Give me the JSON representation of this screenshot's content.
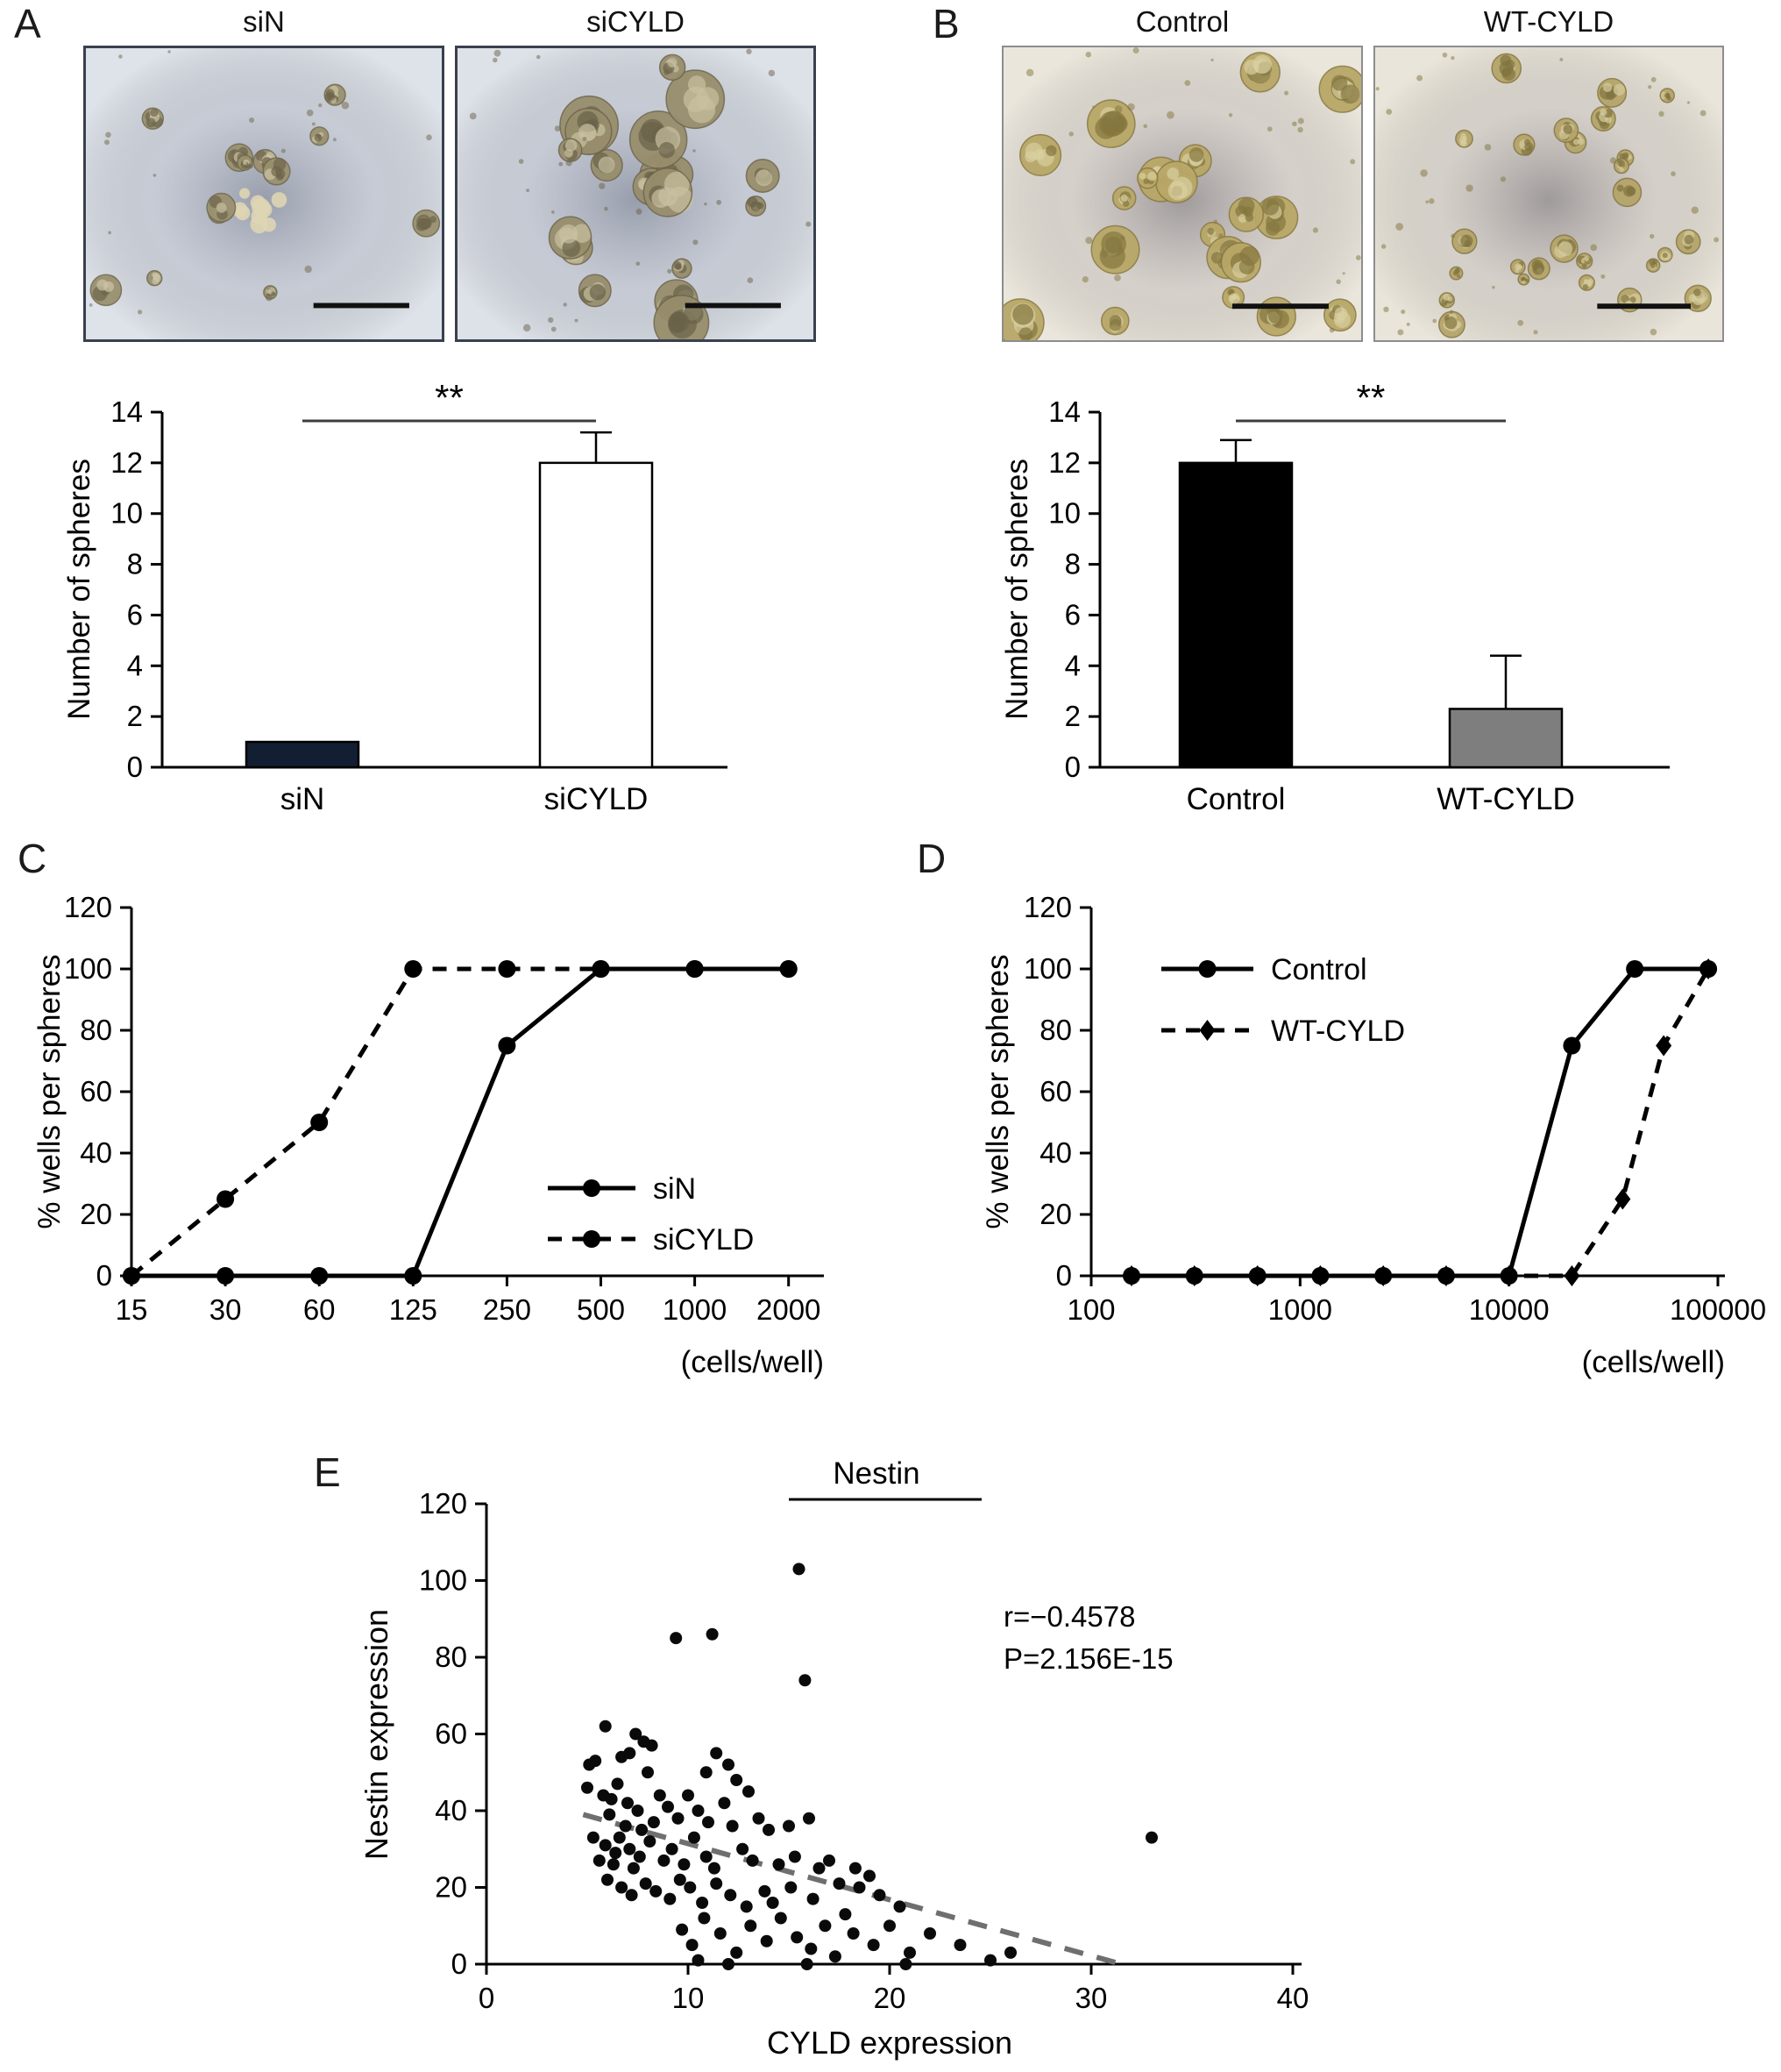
{
  "figure": {
    "panels": {
      "A": {
        "label": "A",
        "images": [
          {
            "caption": "siN"
          },
          {
            "caption": "siCYLD"
          }
        ]
      },
      "B": {
        "label": "B",
        "images": [
          {
            "caption": "Control"
          },
          {
            "caption": "WT-CYLD"
          }
        ]
      },
      "C": {
        "label": "C"
      },
      "D": {
        "label": "D"
      },
      "E": {
        "label": "E"
      }
    }
  },
  "chart_data": [
    {
      "id": "bar-siN-siCYLD",
      "type": "bar",
      "panel": "A",
      "categories": [
        "siN",
        "siCYLD"
      ],
      "values": [
        1,
        12
      ],
      "errors": [
        0,
        1.2
      ],
      "bar_colors": [
        "#121f33",
        "#ffffff"
      ],
      "ylabel": "Number of spheres",
      "ylim": [
        0,
        14
      ],
      "yticks": [
        0,
        2,
        4,
        6,
        8,
        10,
        12,
        14
      ],
      "significance": "**"
    },
    {
      "id": "bar-control-wtcyld",
      "type": "bar",
      "panel": "B",
      "categories": [
        "Control",
        "WT-CYLD"
      ],
      "values": [
        12,
        2.3
      ],
      "errors": [
        0.9,
        2.1
      ],
      "bar_colors": [
        "#000000",
        "#7e7e7e"
      ],
      "ylabel": "Number of spheres",
      "ylim": [
        0,
        14
      ],
      "yticks": [
        0,
        2,
        4,
        6,
        8,
        10,
        12,
        14
      ],
      "significance": "**"
    },
    {
      "id": "line-limiting-dilution-si",
      "type": "line",
      "panel": "C",
      "x_type": "category",
      "categories": [
        "15",
        "30",
        "60",
        "125",
        "250",
        "500",
        "1000",
        "2000"
      ],
      "series": [
        {
          "name": "siN",
          "style": "solid",
          "marker": "circle",
          "values": [
            0,
            0,
            0,
            0,
            75,
            100,
            100,
            100
          ]
        },
        {
          "name": "siCYLD",
          "style": "dashed",
          "marker": "circle",
          "values": [
            0,
            25,
            50,
            100,
            100,
            100,
            100,
            100
          ]
        }
      ],
      "ylabel": "% wells per spheres",
      "xlabel": "(cells/well)",
      "ylim": [
        0,
        120
      ],
      "yticks": [
        0,
        20,
        40,
        60,
        80,
        100,
        120
      ],
      "legend_position": "inside-right-bottom"
    },
    {
      "id": "line-limiting-dilution-wt",
      "type": "line",
      "panel": "D",
      "x_type": "log",
      "xlim": [
        100,
        100000
      ],
      "xticks": [
        100,
        1000,
        10000,
        100000
      ],
      "xtick_labels": [
        "100",
        "1000",
        "10000",
        "100000"
      ],
      "series": [
        {
          "name": "Control",
          "style": "solid",
          "marker": "circle",
          "x": [
            156,
            312,
            625,
            1250,
            2500,
            5000,
            10000,
            20000,
            40000,
            90000
          ],
          "values": [
            0,
            0,
            0,
            0,
            0,
            0,
            0,
            75,
            100,
            100
          ]
        },
        {
          "name": "WT-CYLD",
          "style": "dashed",
          "marker": "diamond",
          "x": [
            156,
            312,
            625,
            1250,
            2500,
            5000,
            10000,
            20000,
            35000,
            55000,
            90000
          ],
          "values": [
            0,
            0,
            0,
            0,
            0,
            0,
            0,
            0,
            25,
            75,
            100
          ]
        }
      ],
      "ylabel": "% wells per spheres",
      "xlabel": "(cells/well)",
      "ylim": [
        0,
        120
      ],
      "yticks": [
        0,
        20,
        40,
        60,
        80,
        100,
        120
      ],
      "legend_position": "inside-left-top"
    },
    {
      "id": "scatter-nestin-cyld",
      "type": "scatter",
      "panel": "E",
      "title": "Nestin",
      "xlabel": "CYLD expression",
      "ylabel": "Nestin expression",
      "xlim": [
        0,
        40
      ],
      "ylim": [
        0,
        120
      ],
      "xticks": [
        0,
        10,
        20,
        30,
        40
      ],
      "yticks": [
        0,
        20,
        40,
        60,
        80,
        100,
        120
      ],
      "annotations": [
        "r=−0.4578",
        "P=2.156E-15"
      ],
      "trend_line": {
        "style": "dashed",
        "color": "#6f6f6f",
        "x1": 4.8,
        "y1": 39,
        "x2": 31.5,
        "y2": 0
      },
      "points": [
        [
          15.5,
          103
        ],
        [
          11.2,
          86
        ],
        [
          9.4,
          85
        ],
        [
          15.8,
          74
        ],
        [
          5.9,
          62
        ],
        [
          7.4,
          60
        ],
        [
          7.8,
          58
        ],
        [
          8.2,
          57
        ],
        [
          6.7,
          54
        ],
        [
          5.4,
          53
        ],
        [
          7.1,
          55
        ],
        [
          11.4,
          55
        ],
        [
          12.0,
          52
        ],
        [
          5.1,
          52
        ],
        [
          8.0,
          50
        ],
        [
          12.4,
          48
        ],
        [
          10.9,
          50
        ],
        [
          5.0,
          46
        ],
        [
          6.5,
          47
        ],
        [
          5.8,
          44
        ],
        [
          8.6,
          44
        ],
        [
          10.0,
          44
        ],
        [
          6.2,
          43
        ],
        [
          7.0,
          42
        ],
        [
          11.8,
          42
        ],
        [
          9.0,
          41
        ],
        [
          7.5,
          40
        ],
        [
          10.5,
          40
        ],
        [
          13.0,
          45
        ],
        [
          9.5,
          38
        ],
        [
          13.5,
          38
        ],
        [
          16.0,
          38
        ],
        [
          6.1,
          39
        ],
        [
          12.2,
          36
        ],
        [
          14.0,
          35
        ],
        [
          15.0,
          36
        ],
        [
          6.9,
          36
        ],
        [
          7.7,
          35
        ],
        [
          8.3,
          37
        ],
        [
          11.0,
          37
        ],
        [
          33.0,
          33
        ],
        [
          5.3,
          33
        ],
        [
          6.6,
          33
        ],
        [
          10.3,
          33
        ],
        [
          5.9,
          31
        ],
        [
          7.1,
          30
        ],
        [
          9.2,
          30
        ],
        [
          12.7,
          30
        ],
        [
          6.4,
          29
        ],
        [
          7.6,
          28
        ],
        [
          10.9,
          28
        ],
        [
          15.3,
          28
        ],
        [
          8.1,
          32
        ],
        [
          8.8,
          27
        ],
        [
          13.2,
          27
        ],
        [
          17.0,
          27
        ],
        [
          5.6,
          27
        ],
        [
          9.8,
          26
        ],
        [
          14.5,
          26
        ],
        [
          6.3,
          26
        ],
        [
          11.3,
          25
        ],
        [
          16.5,
          25
        ],
        [
          7.3,
          25
        ],
        [
          18.3,
          25
        ],
        [
          6.0,
          22
        ],
        [
          9.6,
          22
        ],
        [
          19.0,
          23
        ],
        [
          6.7,
          20
        ],
        [
          10.1,
          20
        ],
        [
          15.1,
          20
        ],
        [
          18.5,
          20
        ],
        [
          7.9,
          21
        ],
        [
          11.4,
          21
        ],
        [
          17.5,
          21
        ],
        [
          7.2,
          18
        ],
        [
          12.1,
          18
        ],
        [
          19.5,
          18
        ],
        [
          8.4,
          19
        ],
        [
          13.8,
          19
        ],
        [
          9.1,
          17
        ],
        [
          16.2,
          17
        ],
        [
          10.7,
          16
        ],
        [
          14.2,
          16
        ],
        [
          12.9,
          15
        ],
        [
          20.5,
          15
        ],
        [
          14.6,
          12
        ],
        [
          10.8,
          12
        ],
        [
          17.8,
          13
        ],
        [
          13.1,
          10
        ],
        [
          16.8,
          10
        ],
        [
          20.0,
          10
        ],
        [
          9.7,
          9
        ],
        [
          11.6,
          8
        ],
        [
          18.2,
          8
        ],
        [
          22.0,
          8
        ],
        [
          15.4,
          7
        ],
        [
          13.9,
          6
        ],
        [
          10.2,
          5
        ],
        [
          19.2,
          5
        ],
        [
          23.5,
          5
        ],
        [
          16.1,
          4
        ],
        [
          12.4,
          3
        ],
        [
          21.0,
          3
        ],
        [
          26.0,
          3
        ],
        [
          17.3,
          2
        ],
        [
          25.0,
          1
        ],
        [
          10.5,
          1
        ],
        [
          15.9,
          0
        ],
        [
          12.0,
          0
        ],
        [
          20.8,
          0
        ]
      ]
    }
  ]
}
